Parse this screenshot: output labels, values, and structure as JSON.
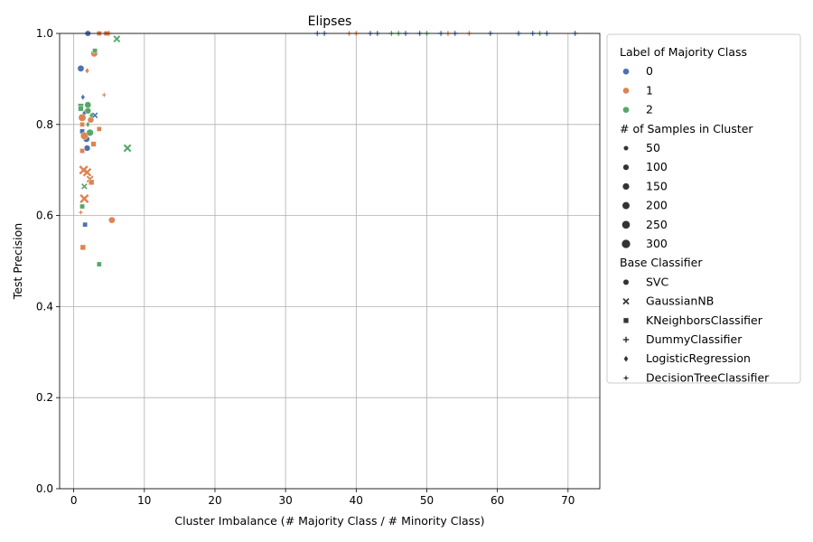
{
  "chart_data": {
    "type": "scatter",
    "title": "Elipses",
    "xlabel": "Cluster Imbalance (# Majority Class / # Minority Class)",
    "ylabel": "Test Precision",
    "xlim": [
      -2,
      74.5
    ],
    "ylim": [
      0,
      1
    ],
    "x_ticks": [
      0,
      10,
      20,
      30,
      40,
      50,
      60,
      70
    ],
    "y_ticks": [
      0.0,
      0.2,
      0.4,
      0.6,
      0.8,
      1.0
    ],
    "grid": true,
    "legend_position": "outside-right",
    "legend": {
      "hue_title": "Label of Majority Class",
      "hue_entries": [
        {
          "label": "0",
          "color": "#4c72b0"
        },
        {
          "label": "1",
          "color": "#dd8452"
        },
        {
          "label": "2",
          "color": "#55a868"
        }
      ],
      "size_title": "# of Samples in Cluster",
      "size_entries": [
        "50",
        "100",
        "150",
        "200",
        "250",
        "300"
      ],
      "style_title": "Base Classifier",
      "style_entries": [
        {
          "label": "SVC",
          "marker": "circle"
        },
        {
          "label": "GaussianNB",
          "marker": "x"
        },
        {
          "label": "KNeighborsClassifier",
          "marker": "square"
        },
        {
          "label": "DummyClassifier",
          "marker": "plus"
        },
        {
          "label": "LogisticRegression",
          "marker": "diamond"
        },
        {
          "label": "DecisionTreeClassifier",
          "marker": "star"
        }
      ]
    },
    "points": [
      {
        "x": 1.0,
        "y": 0.923,
        "label": "0",
        "marker": "circle",
        "n": 120
      },
      {
        "x": 2.0,
        "y": 1.0,
        "label": "0",
        "marker": "circle",
        "n": 80
      },
      {
        "x": 1.8,
        "y": 0.768,
        "label": "0",
        "marker": "circle",
        "n": 120
      },
      {
        "x": 1.9,
        "y": 0.748,
        "label": "0",
        "marker": "circle",
        "n": 100
      },
      {
        "x": 1.2,
        "y": 0.785,
        "label": "0",
        "marker": "square",
        "n": 50
      },
      {
        "x": 1.6,
        "y": 0.58,
        "label": "0",
        "marker": "square",
        "n": 50
      },
      {
        "x": 1.3,
        "y": 0.86,
        "label": "0",
        "marker": "diamond",
        "n": 50
      },
      {
        "x": 3.0,
        "y": 0.82,
        "label": "0",
        "marker": "x",
        "n": 50
      },
      {
        "x": 1.5,
        "y": 0.825,
        "label": "0",
        "marker": "diamond",
        "n": 50
      },
      {
        "x": 2.9,
        "y": 0.956,
        "label": "1",
        "marker": "circle",
        "n": 150
      },
      {
        "x": 5.4,
        "y": 0.59,
        "label": "1",
        "marker": "circle",
        "n": 120
      },
      {
        "x": 1.2,
        "y": 0.815,
        "label": "1",
        "marker": "circle",
        "n": 200
      },
      {
        "x": 1.5,
        "y": 0.775,
        "label": "1",
        "marker": "circle",
        "n": 200
      },
      {
        "x": 2.4,
        "y": 0.81,
        "label": "1",
        "marker": "circle",
        "n": 100
      },
      {
        "x": 1.4,
        "y": 0.7,
        "label": "1",
        "marker": "x",
        "n": 250
      },
      {
        "x": 1.9,
        "y": 0.695,
        "label": "1",
        "marker": "x",
        "n": 200
      },
      {
        "x": 1.5,
        "y": 0.637,
        "label": "1",
        "marker": "x",
        "n": 250
      },
      {
        "x": 2.3,
        "y": 0.68,
        "label": "1",
        "marker": "x",
        "n": 100
      },
      {
        "x": 1.3,
        "y": 0.53,
        "label": "1",
        "marker": "square",
        "n": 80
      },
      {
        "x": 1.2,
        "y": 0.742,
        "label": "1",
        "marker": "square",
        "n": 50
      },
      {
        "x": 2.8,
        "y": 0.757,
        "label": "1",
        "marker": "square",
        "n": 80
      },
      {
        "x": 3.6,
        "y": 0.79,
        "label": "1",
        "marker": "square",
        "n": 50
      },
      {
        "x": 2.5,
        "y": 0.673,
        "label": "1",
        "marker": "square",
        "n": 80
      },
      {
        "x": 1.2,
        "y": 0.8,
        "label": "1",
        "marker": "square",
        "n": 50
      },
      {
        "x": 1.9,
        "y": 0.918,
        "label": "1",
        "marker": "diamond",
        "n": 50
      },
      {
        "x": 4.3,
        "y": 0.865,
        "label": "1",
        "marker": "star",
        "n": 50
      },
      {
        "x": 1.0,
        "y": 0.607,
        "label": "1",
        "marker": "star",
        "n": 50
      },
      {
        "x": 3.6,
        "y": 1.0,
        "label": "1",
        "marker": "square",
        "n": 50
      },
      {
        "x": 4.6,
        "y": 1.0,
        "label": "1",
        "marker": "square",
        "n": 50
      },
      {
        "x": 5.0,
        "y": 1.0,
        "label": "1",
        "marker": "plus",
        "n": 50
      },
      {
        "x": 1.0,
        "y": 0.84,
        "label": "2",
        "marker": "square",
        "n": 100
      },
      {
        "x": 1.0,
        "y": 0.835,
        "label": "2",
        "marker": "square",
        "n": 80
      },
      {
        "x": 2.0,
        "y": 0.843,
        "label": "2",
        "marker": "circle",
        "n": 120
      },
      {
        "x": 2.0,
        "y": 0.83,
        "label": "2",
        "marker": "circle",
        "n": 100
      },
      {
        "x": 2.3,
        "y": 0.782,
        "label": "2",
        "marker": "circle",
        "n": 150
      },
      {
        "x": 2.0,
        "y": 0.8,
        "label": "2",
        "marker": "diamond",
        "n": 50
      },
      {
        "x": 2.5,
        "y": 0.82,
        "label": "2",
        "marker": "diamond",
        "n": 50
      },
      {
        "x": 1.5,
        "y": 0.664,
        "label": "2",
        "marker": "x",
        "n": 50
      },
      {
        "x": 1.2,
        "y": 0.62,
        "label": "2",
        "marker": "square",
        "n": 50
      },
      {
        "x": 3.0,
        "y": 0.962,
        "label": "2",
        "marker": "square",
        "n": 50
      },
      {
        "x": 3.6,
        "y": 0.493,
        "label": "2",
        "marker": "square",
        "n": 50
      },
      {
        "x": 6.1,
        "y": 0.988,
        "label": "2",
        "marker": "x",
        "n": 100
      },
      {
        "x": 7.6,
        "y": 0.748,
        "label": "2",
        "marker": "x",
        "n": 150
      },
      {
        "x": 34.5,
        "y": 1.0,
        "label": "0",
        "marker": "plus",
        "n": 50
      },
      {
        "x": 35.5,
        "y": 1.0,
        "label": "0",
        "marker": "plus",
        "n": 50
      },
      {
        "x": 39.0,
        "y": 1.0,
        "label": "1",
        "marker": "plus",
        "n": 50
      },
      {
        "x": 40.0,
        "y": 1.0,
        "label": "1",
        "marker": "plus",
        "n": 50
      },
      {
        "x": 42.0,
        "y": 1.0,
        "label": "0",
        "marker": "plus",
        "n": 50
      },
      {
        "x": 43.0,
        "y": 1.0,
        "label": "0",
        "marker": "plus",
        "n": 50
      },
      {
        "x": 45.0,
        "y": 1.0,
        "label": "2",
        "marker": "plus",
        "n": 50
      },
      {
        "x": 46.0,
        "y": 1.0,
        "label": "2",
        "marker": "plus",
        "n": 50
      },
      {
        "x": 47.0,
        "y": 1.0,
        "label": "0",
        "marker": "plus",
        "n": 50
      },
      {
        "x": 49.0,
        "y": 1.0,
        "label": "0",
        "marker": "plus",
        "n": 50
      },
      {
        "x": 50.0,
        "y": 1.0,
        "label": "2",
        "marker": "plus",
        "n": 50
      },
      {
        "x": 52.0,
        "y": 1.0,
        "label": "0",
        "marker": "plus",
        "n": 50
      },
      {
        "x": 53.0,
        "y": 1.0,
        "label": "1",
        "marker": "plus",
        "n": 50
      },
      {
        "x": 54.0,
        "y": 1.0,
        "label": "0",
        "marker": "plus",
        "n": 50
      },
      {
        "x": 56.0,
        "y": 1.0,
        "label": "1",
        "marker": "plus",
        "n": 50
      },
      {
        "x": 59.0,
        "y": 1.0,
        "label": "0",
        "marker": "plus",
        "n": 50
      },
      {
        "x": 63.0,
        "y": 1.0,
        "label": "0",
        "marker": "plus",
        "n": 50
      },
      {
        "x": 65.0,
        "y": 1.0,
        "label": "0",
        "marker": "plus",
        "n": 50
      },
      {
        "x": 66.0,
        "y": 1.0,
        "label": "2",
        "marker": "plus",
        "n": 50
      },
      {
        "x": 67.0,
        "y": 1.0,
        "label": "0",
        "marker": "plus",
        "n": 50
      },
      {
        "x": 71.0,
        "y": 1.0,
        "label": "0",
        "marker": "plus",
        "n": 50
      }
    ]
  }
}
